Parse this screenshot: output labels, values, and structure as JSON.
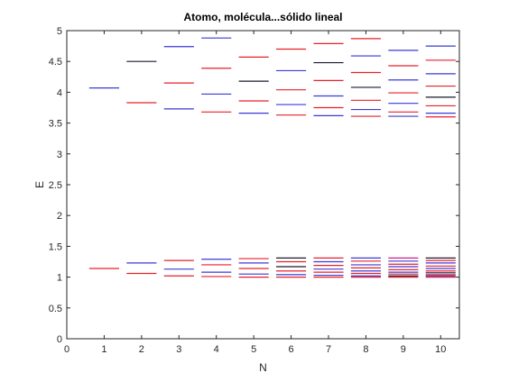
{
  "chart_data": {
    "type": "line",
    "title": "Atomo, molécula...sólido lineal",
    "xlabel": "N",
    "ylabel": "E",
    "xlim": [
      0,
      10.5
    ],
    "ylim": [
      0,
      5
    ],
    "xticks": [
      "0",
      "1",
      "2",
      "3",
      "4",
      "5",
      "6",
      "7",
      "8",
      "9",
      "10"
    ],
    "yticks": [
      "0",
      "0.5",
      "1",
      "1.5",
      "2",
      "2.5",
      "3",
      "3.5",
      "4",
      "4.5",
      "5"
    ],
    "grid": false,
    "level_half_width": 0.4,
    "colors": {
      "red": "#e8202a",
      "blue": "#3a3ad8",
      "black": "#1a1a2e",
      "magenta": "#c8208a"
    },
    "series": [
      {
        "x": 1,
        "levels": [
          {
            "e": 1.14,
            "c": "red"
          },
          {
            "e": 4.07,
            "c": "blue"
          }
        ]
      },
      {
        "x": 2,
        "levels": [
          {
            "e": 1.06,
            "c": "red"
          },
          {
            "e": 1.23,
            "c": "blue"
          },
          {
            "e": 3.83,
            "c": "red"
          },
          {
            "e": 4.5,
            "c": "black"
          }
        ]
      },
      {
        "x": 3,
        "levels": [
          {
            "e": 1.02,
            "c": "red"
          },
          {
            "e": 1.13,
            "c": "blue"
          },
          {
            "e": 1.27,
            "c": "red"
          },
          {
            "e": 3.73,
            "c": "blue"
          },
          {
            "e": 4.15,
            "c": "red"
          },
          {
            "e": 4.74,
            "c": "blue"
          }
        ]
      },
      {
        "x": 4,
        "levels": [
          {
            "e": 1.01,
            "c": "red"
          },
          {
            "e": 1.08,
            "c": "blue"
          },
          {
            "e": 1.2,
            "c": "red"
          },
          {
            "e": 1.29,
            "c": "blue"
          },
          {
            "e": 3.68,
            "c": "red"
          },
          {
            "e": 3.97,
            "c": "blue"
          },
          {
            "e": 4.39,
            "c": "red"
          },
          {
            "e": 4.88,
            "c": "blue"
          }
        ]
      },
      {
        "x": 5,
        "levels": [
          {
            "e": 1.0,
            "c": "red"
          },
          {
            "e": 1.05,
            "c": "blue"
          },
          {
            "e": 1.14,
            "c": "red"
          },
          {
            "e": 1.23,
            "c": "blue"
          },
          {
            "e": 1.3,
            "c": "red"
          },
          {
            "e": 3.66,
            "c": "blue"
          },
          {
            "e": 3.86,
            "c": "red"
          },
          {
            "e": 4.18,
            "c": "black"
          },
          {
            "e": 4.57,
            "c": "red"
          }
        ]
      },
      {
        "x": 6,
        "levels": [
          {
            "e": 1.0,
            "c": "red"
          },
          {
            "e": 1.04,
            "c": "blue"
          },
          {
            "e": 1.1,
            "c": "red"
          },
          {
            "e": 1.17,
            "c": "black"
          },
          {
            "e": 1.25,
            "c": "red"
          },
          {
            "e": 1.31,
            "c": "black"
          },
          {
            "e": 3.63,
            "c": "red"
          },
          {
            "e": 3.8,
            "c": "blue"
          },
          {
            "e": 4.04,
            "c": "red"
          },
          {
            "e": 4.35,
            "c": "blue"
          },
          {
            "e": 4.7,
            "c": "red"
          }
        ]
      },
      {
        "x": 7,
        "levels": [
          {
            "e": 1.0,
            "c": "red"
          },
          {
            "e": 1.03,
            "c": "blue"
          },
          {
            "e": 1.08,
            "c": "red"
          },
          {
            "e": 1.13,
            "c": "blue"
          },
          {
            "e": 1.19,
            "c": "red"
          },
          {
            "e": 1.25,
            "c": "blue"
          },
          {
            "e": 1.31,
            "c": "red"
          },
          {
            "e": 3.62,
            "c": "blue"
          },
          {
            "e": 3.75,
            "c": "red"
          },
          {
            "e": 3.94,
            "c": "blue"
          },
          {
            "e": 4.19,
            "c": "red"
          },
          {
            "e": 4.48,
            "c": "black"
          },
          {
            "e": 4.79,
            "c": "red"
          }
        ]
      },
      {
        "x": 8,
        "levels": [
          {
            "e": 1.0,
            "c": "red"
          },
          {
            "e": 1.02,
            "c": "blue"
          },
          {
            "e": 1.06,
            "c": "red"
          },
          {
            "e": 1.1,
            "c": "blue"
          },
          {
            "e": 1.15,
            "c": "red"
          },
          {
            "e": 1.2,
            "c": "blue"
          },
          {
            "e": 1.26,
            "c": "red"
          },
          {
            "e": 1.31,
            "c": "blue"
          },
          {
            "e": 3.61,
            "c": "red"
          },
          {
            "e": 3.72,
            "c": "blue"
          },
          {
            "e": 3.87,
            "c": "red"
          },
          {
            "e": 4.08,
            "c": "black"
          },
          {
            "e": 4.32,
            "c": "red"
          },
          {
            "e": 4.59,
            "c": "blue"
          },
          {
            "e": 4.87,
            "c": "red"
          }
        ]
      },
      {
        "x": 9,
        "levels": [
          {
            "e": 1.0,
            "c": "red"
          },
          {
            "e": 1.02,
            "c": "black"
          },
          {
            "e": 1.05,
            "c": "red"
          },
          {
            "e": 1.08,
            "c": "blue"
          },
          {
            "e": 1.12,
            "c": "red"
          },
          {
            "e": 1.17,
            "c": "blue"
          },
          {
            "e": 1.21,
            "c": "red"
          },
          {
            "e": 1.26,
            "c": "blue"
          },
          {
            "e": 1.31,
            "c": "magenta"
          },
          {
            "e": 3.61,
            "c": "blue"
          },
          {
            "e": 3.68,
            "c": "red"
          },
          {
            "e": 3.82,
            "c": "blue"
          },
          {
            "e": 3.99,
            "c": "red"
          },
          {
            "e": 4.2,
            "c": "blue"
          },
          {
            "e": 4.43,
            "c": "red"
          },
          {
            "e": 4.68,
            "c": "blue"
          }
        ]
      },
      {
        "x": 10,
        "levels": [
          {
            "e": 1.0,
            "c": "red"
          },
          {
            "e": 1.02,
            "c": "blue"
          },
          {
            "e": 1.04,
            "c": "red"
          },
          {
            "e": 1.07,
            "c": "black"
          },
          {
            "e": 1.1,
            "c": "red"
          },
          {
            "e": 1.14,
            "c": "blue"
          },
          {
            "e": 1.18,
            "c": "red"
          },
          {
            "e": 1.23,
            "c": "blue"
          },
          {
            "e": 1.27,
            "c": "red"
          },
          {
            "e": 1.31,
            "c": "black"
          },
          {
            "e": 3.6,
            "c": "red"
          },
          {
            "e": 3.66,
            "c": "blue"
          },
          {
            "e": 3.78,
            "c": "red"
          },
          {
            "e": 3.92,
            "c": "black"
          },
          {
            "e": 4.1,
            "c": "red"
          },
          {
            "e": 4.3,
            "c": "blue"
          },
          {
            "e": 4.52,
            "c": "red"
          },
          {
            "e": 4.75,
            "c": "blue"
          }
        ]
      }
    ]
  }
}
